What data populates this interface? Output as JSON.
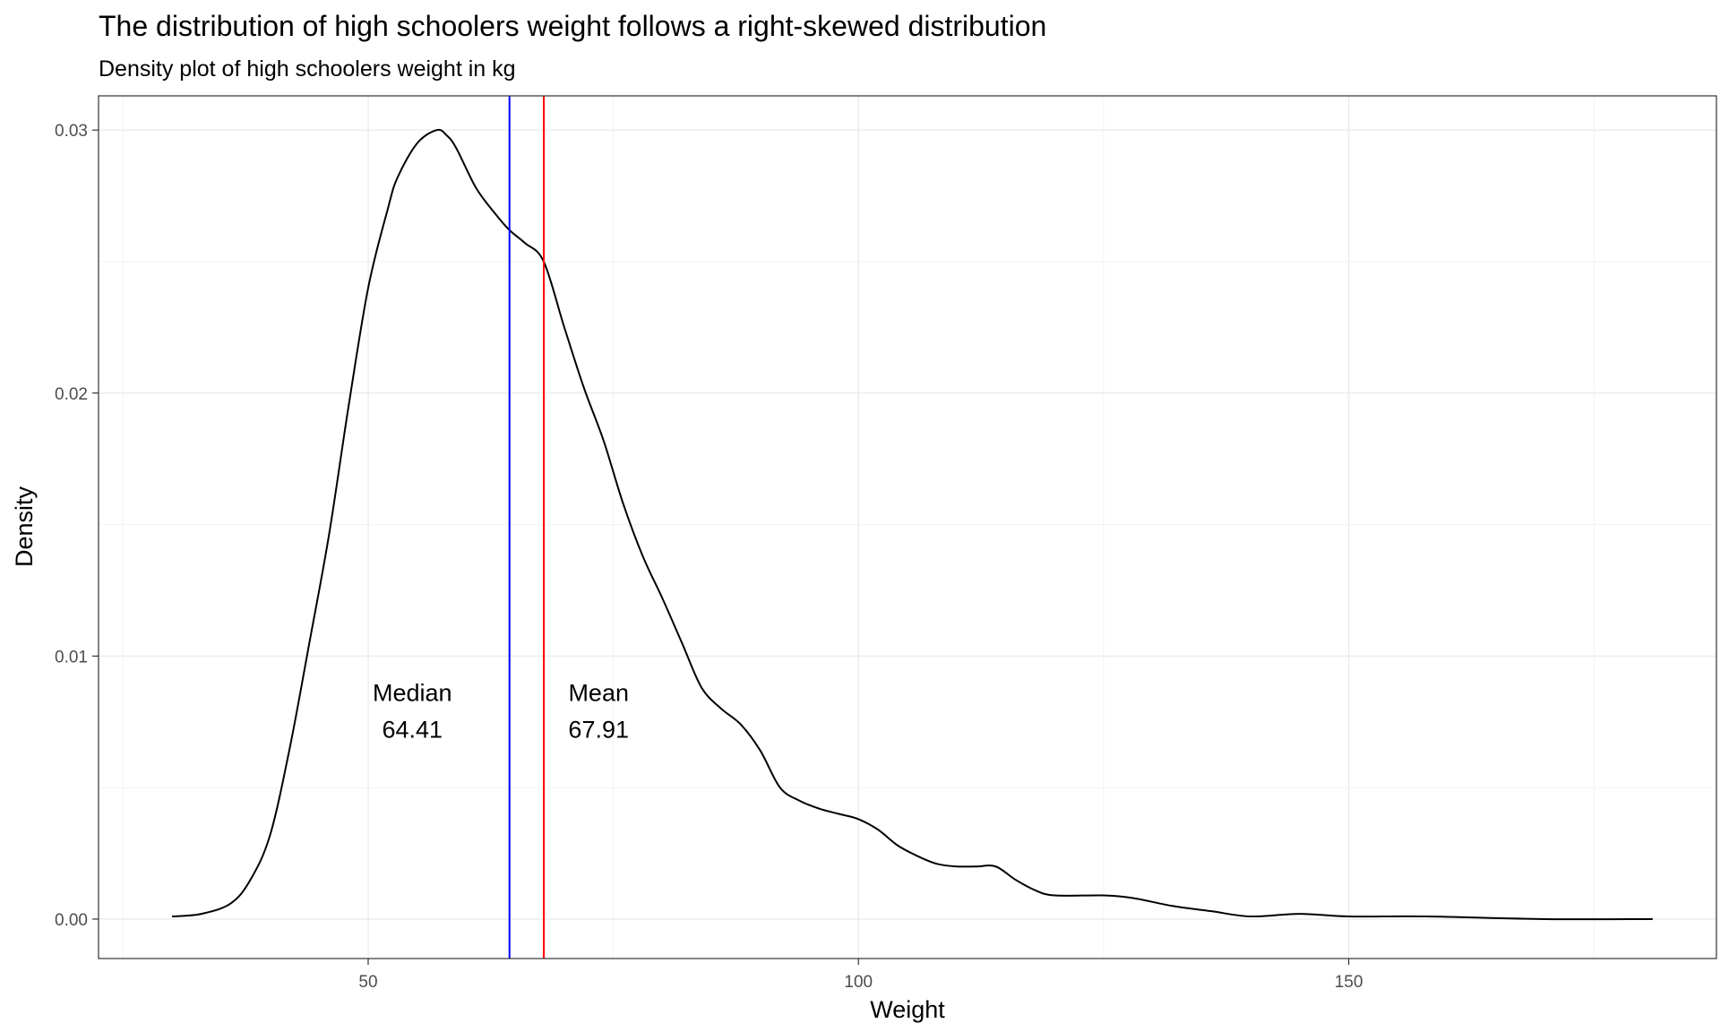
{
  "chart_data": {
    "type": "line",
    "title": "The distribution of high schoolers weight follows a right-skewed distribution",
    "subtitle": "Density plot of high schoolers weight in kg",
    "xlabel": "Weight",
    "ylabel": "Density",
    "xlim": [
      22.5,
      187.5
    ],
    "ylim": [
      -0.0015,
      0.0313
    ],
    "x_ticks": [
      50,
      100,
      150
    ],
    "x_tick_labels": [
      "50",
      "100",
      "150"
    ],
    "y_ticks": [
      0,
      0.01,
      0.02,
      0.03
    ],
    "y_tick_labels": [
      "0.00",
      "0.01",
      "0.02",
      "0.03"
    ],
    "grid": true,
    "series": [
      {
        "color": "#000000",
        "x": [
          30,
          33,
          36,
          38,
          40,
          42,
          44,
          46,
          48,
          50,
          52,
          53,
          55,
          57,
          58,
          59,
          61,
          63,
          64.4,
          66,
          67.9,
          70,
          72,
          74,
          76,
          78,
          80,
          82,
          84,
          86,
          88,
          90,
          92,
          94,
          96,
          98,
          100,
          102,
          104,
          106,
          108,
          110,
          112,
          114,
          116,
          118,
          120,
          125,
          128,
          132,
          136,
          140,
          145,
          150,
          158,
          170,
          181
        ],
        "values": [
          0.0001,
          0.0002,
          0.0006,
          0.0015,
          0.0032,
          0.0065,
          0.0105,
          0.0146,
          0.0195,
          0.024,
          0.027,
          0.0282,
          0.0295,
          0.03,
          0.0298,
          0.0293,
          0.0278,
          0.0268,
          0.0262,
          0.0257,
          0.025,
          0.0225,
          0.0202,
          0.0182,
          0.0158,
          0.0138,
          0.0122,
          0.0105,
          0.0088,
          0.008,
          0.0074,
          0.0064,
          0.005,
          0.0045,
          0.0042,
          0.004,
          0.0038,
          0.0034,
          0.0028,
          0.0024,
          0.0021,
          0.002,
          0.002,
          0.002,
          0.0015,
          0.0011,
          0.0009,
          0.0009,
          0.0008,
          0.0005,
          0.0003,
          0.0001,
          0.0002,
          0.0001,
          0.0001,
          0.0,
          0.0
        ]
      }
    ],
    "vlines": [
      {
        "x": 64.41,
        "color": "#0000ff"
      },
      {
        "x": 67.91,
        "color": "#ff0000"
      }
    ],
    "annotations": [
      {
        "label": "Median",
        "value": "64.41",
        "x": 54.5
      },
      {
        "label": "Mean",
        "value": "67.91",
        "x": 73.5
      }
    ],
    "annotation_y_label": 0.0086,
    "annotation_y_value": 0.0072
  }
}
